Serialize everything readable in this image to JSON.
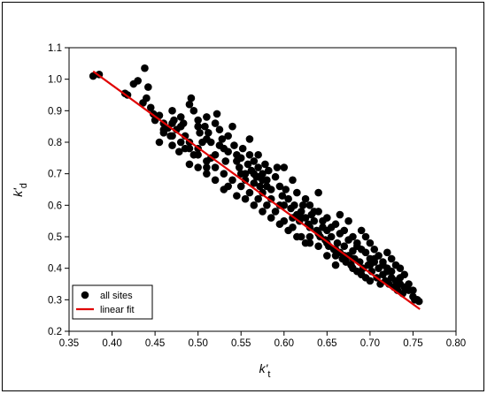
{
  "chart_data": {
    "type": "scatter",
    "xlabel": "k'",
    "xlabel_sub": "t",
    "ylabel": "k'",
    "ylabel_sub": "d",
    "xlim": [
      0.35,
      0.8
    ],
    "ylim": [
      0.2,
      1.1
    ],
    "xticks": [
      "0.35",
      "0.40",
      "0.45",
      "0.50",
      "0.55",
      "0.60",
      "0.65",
      "0.70",
      "0.75",
      "0.80"
    ],
    "yticks": [
      "0.2",
      "0.3",
      "0.4",
      "0.5",
      "0.6",
      "0.7",
      "0.8",
      "0.9",
      "1.0",
      "1.1"
    ],
    "legend": {
      "position": "bottom-left",
      "entries": [
        "all sites",
        "linear fit"
      ]
    },
    "grid": false,
    "colors": {
      "points": "#000000",
      "fit": "#e00000"
    },
    "series": [
      {
        "name": "all sites",
        "type": "scatter",
        "points": [
          [
            0.378,
            1.01
          ],
          [
            0.385,
            1.015
          ],
          [
            0.415,
            0.955
          ],
          [
            0.418,
            0.95
          ],
          [
            0.425,
            0.985
          ],
          [
            0.43,
            0.995
          ],
          [
            0.438,
            1.035
          ],
          [
            0.442,
            0.975
          ],
          [
            0.44,
            0.94
          ],
          [
            0.436,
            0.925
          ],
          [
            0.445,
            0.91
          ],
          [
            0.448,
            0.89
          ],
          [
            0.45,
            0.87
          ],
          [
            0.455,
            0.885
          ],
          [
            0.46,
            0.86
          ],
          [
            0.465,
            0.845
          ],
          [
            0.47,
            0.9
          ],
          [
            0.472,
            0.87
          ],
          [
            0.475,
            0.84
          ],
          [
            0.468,
            0.82
          ],
          [
            0.455,
            0.8
          ],
          [
            0.46,
            0.83
          ],
          [
            0.48,
            0.88
          ],
          [
            0.483,
            0.86
          ],
          [
            0.485,
            0.82
          ],
          [
            0.49,
            0.92
          ],
          [
            0.492,
            0.94
          ],
          [
            0.495,
            0.9
          ],
          [
            0.5,
            0.87
          ],
          [
            0.502,
            0.83
          ],
          [
            0.47,
            0.79
          ],
          [
            0.478,
            0.77
          ],
          [
            0.485,
            0.78
          ],
          [
            0.49,
            0.8
          ],
          [
            0.495,
            0.76
          ],
          [
            0.5,
            0.78
          ],
          [
            0.505,
            0.8
          ],
          [
            0.508,
            0.85
          ],
          [
            0.51,
            0.88
          ],
          [
            0.512,
            0.83
          ],
          [
            0.515,
            0.8
          ],
          [
            0.52,
            0.86
          ],
          [
            0.522,
            0.89
          ],
          [
            0.525,
            0.84
          ],
          [
            0.528,
            0.81
          ],
          [
            0.53,
            0.78
          ],
          [
            0.532,
            0.74
          ],
          [
            0.51,
            0.72
          ],
          [
            0.515,
            0.75
          ],
          [
            0.52,
            0.76
          ],
          [
            0.535,
            0.82
          ],
          [
            0.54,
            0.85
          ],
          [
            0.542,
            0.79
          ],
          [
            0.545,
            0.76
          ],
          [
            0.548,
            0.72
          ],
          [
            0.55,
            0.75
          ],
          [
            0.552,
            0.78
          ],
          [
            0.555,
            0.7
          ],
          [
            0.558,
            0.73
          ],
          [
            0.56,
            0.76
          ],
          [
            0.562,
            0.71
          ],
          [
            0.565,
            0.74
          ],
          [
            0.568,
            0.69
          ],
          [
            0.57,
            0.72
          ],
          [
            0.572,
            0.66
          ],
          [
            0.575,
            0.7
          ],
          [
            0.578,
            0.73
          ],
          [
            0.58,
            0.68
          ],
          [
            0.582,
            0.71
          ],
          [
            0.585,
            0.65
          ],
          [
            0.56,
            0.81
          ],
          [
            0.565,
            0.67
          ],
          [
            0.57,
            0.76
          ],
          [
            0.575,
            0.64
          ],
          [
            0.59,
            0.69
          ],
          [
            0.592,
            0.72
          ],
          [
            0.595,
            0.66
          ],
          [
            0.598,
            0.63
          ],
          [
            0.6,
            0.6
          ],
          [
            0.602,
            0.65
          ],
          [
            0.605,
            0.62
          ],
          [
            0.608,
            0.59
          ],
          [
            0.61,
            0.56
          ],
          [
            0.612,
            0.6
          ],
          [
            0.615,
            0.57
          ],
          [
            0.618,
            0.55
          ],
          [
            0.62,
            0.58
          ],
          [
            0.622,
            0.6
          ],
          [
            0.625,
            0.56
          ],
          [
            0.628,
            0.54
          ],
          [
            0.63,
            0.53
          ],
          [
            0.632,
            0.57
          ],
          [
            0.635,
            0.55
          ],
          [
            0.638,
            0.52
          ],
          [
            0.64,
            0.64
          ],
          [
            0.642,
            0.5
          ],
          [
            0.645,
            0.53
          ],
          [
            0.648,
            0.49
          ],
          [
            0.65,
            0.52
          ],
          [
            0.652,
            0.47
          ],
          [
            0.655,
            0.5
          ],
          [
            0.658,
            0.46
          ],
          [
            0.66,
            0.44
          ],
          [
            0.662,
            0.48
          ],
          [
            0.665,
            0.45
          ],
          [
            0.668,
            0.43
          ],
          [
            0.67,
            0.47
          ],
          [
            0.672,
            0.42
          ],
          [
            0.675,
            0.44
          ],
          [
            0.678,
            0.41
          ],
          [
            0.68,
            0.4
          ],
          [
            0.682,
            0.43
          ],
          [
            0.685,
            0.39
          ],
          [
            0.688,
            0.42
          ],
          [
            0.69,
            0.38
          ],
          [
            0.692,
            0.4
          ],
          [
            0.695,
            0.37
          ],
          [
            0.698,
            0.41
          ],
          [
            0.7,
            0.36
          ],
          [
            0.702,
            0.39
          ],
          [
            0.705,
            0.42
          ],
          [
            0.708,
            0.37
          ],
          [
            0.71,
            0.4
          ],
          [
            0.712,
            0.35
          ],
          [
            0.715,
            0.38
          ],
          [
            0.718,
            0.36
          ],
          [
            0.72,
            0.39
          ],
          [
            0.722,
            0.35
          ],
          [
            0.725,
            0.37
          ],
          [
            0.728,
            0.34
          ],
          [
            0.73,
            0.36
          ],
          [
            0.732,
            0.33
          ],
          [
            0.735,
            0.35
          ],
          [
            0.738,
            0.32
          ],
          [
            0.74,
            0.34
          ],
          [
            0.745,
            0.33
          ],
          [
            0.75,
            0.31
          ],
          [
            0.752,
            0.3
          ],
          [
            0.755,
            0.3
          ],
          [
            0.757,
            0.295
          ],
          [
            0.6,
            0.72
          ],
          [
            0.61,
            0.68
          ],
          [
            0.615,
            0.64
          ],
          [
            0.625,
            0.62
          ],
          [
            0.63,
            0.6
          ],
          [
            0.63,
            0.5
          ],
          [
            0.64,
            0.58
          ],
          [
            0.65,
            0.56
          ],
          [
            0.66,
            0.54
          ],
          [
            0.665,
            0.57
          ],
          [
            0.67,
            0.52
          ],
          [
            0.675,
            0.55
          ],
          [
            0.68,
            0.5
          ],
          [
            0.685,
            0.48
          ],
          [
            0.69,
            0.52
          ],
          [
            0.695,
            0.5
          ],
          [
            0.7,
            0.48
          ],
          [
            0.705,
            0.46
          ],
          [
            0.71,
            0.44
          ],
          [
            0.715,
            0.42
          ],
          [
            0.72,
            0.45
          ],
          [
            0.725,
            0.43
          ],
          [
            0.73,
            0.41
          ],
          [
            0.735,
            0.4
          ],
          [
            0.74,
            0.38
          ],
          [
            0.7,
            0.43
          ],
          [
            0.69,
            0.46
          ],
          [
            0.68,
            0.455
          ],
          [
            0.67,
            0.44
          ],
          [
            0.66,
            0.41
          ],
          [
            0.65,
            0.44
          ],
          [
            0.64,
            0.47
          ],
          [
            0.63,
            0.48
          ],
          [
            0.62,
            0.5
          ],
          [
            0.61,
            0.53
          ],
          [
            0.6,
            0.55
          ],
          [
            0.59,
            0.58
          ],
          [
            0.58,
            0.6
          ],
          [
            0.57,
            0.62
          ],
          [
            0.56,
            0.64
          ],
          [
            0.55,
            0.66
          ],
          [
            0.54,
            0.68
          ],
          [
            0.53,
            0.7
          ],
          [
            0.52,
            0.72
          ],
          [
            0.51,
            0.74
          ],
          [
            0.5,
            0.76
          ],
          [
            0.49,
            0.78
          ],
          [
            0.48,
            0.8
          ],
          [
            0.47,
            0.82
          ],
          [
            0.46,
            0.84
          ],
          [
            0.53,
            0.65
          ],
          [
            0.545,
            0.63
          ],
          [
            0.555,
            0.62
          ],
          [
            0.565,
            0.6
          ],
          [
            0.575,
            0.58
          ],
          [
            0.585,
            0.56
          ],
          [
            0.595,
            0.54
          ],
          [
            0.605,
            0.52
          ],
          [
            0.615,
            0.5
          ],
          [
            0.625,
            0.48
          ],
          [
            0.49,
            0.73
          ],
          [
            0.5,
            0.72
          ],
          [
            0.51,
            0.7
          ],
          [
            0.52,
            0.68
          ],
          [
            0.535,
            0.66
          ],
          [
            0.555,
            0.68
          ],
          [
            0.565,
            0.7
          ],
          [
            0.575,
            0.68
          ],
          [
            0.585,
            0.62
          ],
          [
            0.595,
            0.6
          ],
          [
            0.48,
            0.85
          ],
          [
            0.47,
            0.86
          ],
          [
            0.5,
            0.85
          ],
          [
            0.51,
            0.81
          ],
          [
            0.525,
            0.79
          ],
          [
            0.535,
            0.77
          ],
          [
            0.545,
            0.74
          ],
          [
            0.55,
            0.7
          ],
          [
            0.57,
            0.69
          ],
          [
            0.58,
            0.66
          ],
          [
            0.62,
            0.56
          ],
          [
            0.635,
            0.58
          ],
          [
            0.645,
            0.55
          ],
          [
            0.655,
            0.53
          ],
          [
            0.665,
            0.51
          ],
          [
            0.675,
            0.49
          ],
          [
            0.685,
            0.47
          ],
          [
            0.695,
            0.45
          ],
          [
            0.705,
            0.43
          ],
          [
            0.715,
            0.41
          ],
          [
            0.725,
            0.39
          ],
          [
            0.735,
            0.37
          ],
          [
            0.745,
            0.35
          ],
          [
            0.75,
            0.33
          ],
          [
            0.72,
            0.4
          ],
          [
            0.7,
            0.41
          ],
          [
            0.68,
            0.43
          ],
          [
            0.66,
            0.46
          ],
          [
            0.65,
            0.48
          ],
          [
            0.64,
            0.51
          ]
        ]
      },
      {
        "name": "linear fit",
        "type": "line",
        "points": [
          [
            0.378,
            1.025
          ],
          [
            0.758,
            0.27
          ]
        ]
      }
    ]
  }
}
